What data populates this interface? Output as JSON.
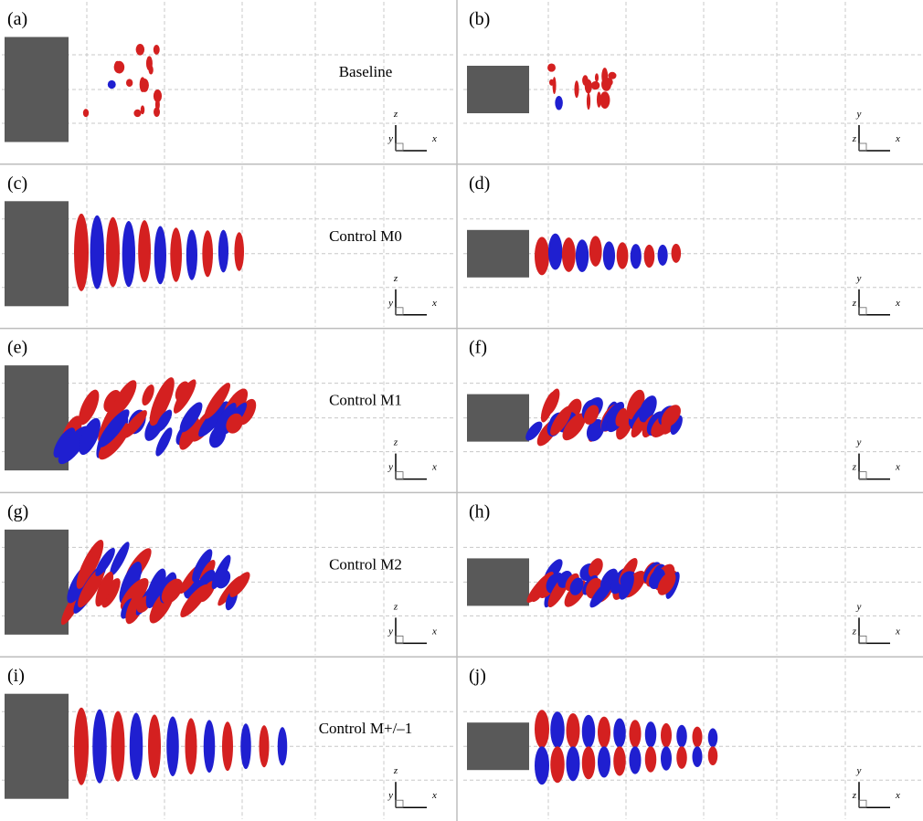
{
  "panels": [
    {
      "label": "(a)",
      "caption": "Baseline",
      "axes": {
        "up": "z",
        "side": "y",
        "right": "x"
      }
    },
    {
      "label": "(b)",
      "axes": {
        "up": "y",
        "side": "z",
        "right": "x"
      }
    },
    {
      "label": "(c)",
      "caption": "Control M0",
      "axes": {
        "up": "z",
        "side": "y",
        "right": "x"
      }
    },
    {
      "label": "(d)",
      "axes": {
        "up": "y",
        "side": "z",
        "right": "x"
      }
    },
    {
      "label": "(e)",
      "caption": "Control M1",
      "axes": {
        "up": "z",
        "side": "y",
        "right": "x"
      }
    },
    {
      "label": "(f)",
      "axes": {
        "up": "y",
        "side": "z",
        "right": "x"
      }
    },
    {
      "label": "(g)",
      "caption": "Control M2",
      "axes": {
        "up": "z",
        "side": "y",
        "right": "x"
      }
    },
    {
      "label": "(h)",
      "axes": {
        "up": "y",
        "side": "z",
        "right": "x"
      }
    },
    {
      "label": "(i)",
      "caption": "Control M+/–1",
      "axes": {
        "up": "z",
        "side": "y",
        "right": "x"
      }
    },
    {
      "label": "(j)",
      "axes": {
        "up": "y",
        "side": "z",
        "right": "x"
      }
    }
  ]
}
